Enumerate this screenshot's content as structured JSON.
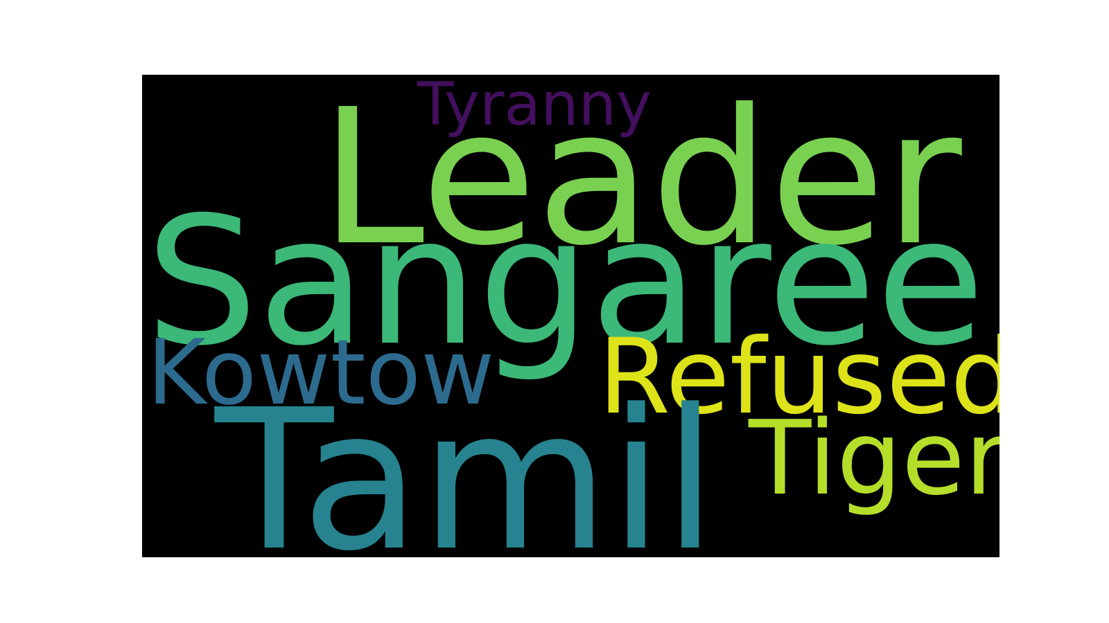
{
  "wordcloud": {
    "background": "#000000",
    "words": [
      {
        "id": "tyranny",
        "text": "Tyranny",
        "color": "#440f5e"
      },
      {
        "id": "leader",
        "text": "Leader",
        "color": "#7ad151"
      },
      {
        "id": "sangaree",
        "text": "Sangaree",
        "color": "#3cb878"
      },
      {
        "id": "kowtow",
        "text": "Kowtow",
        "color": "#2d6b8e"
      },
      {
        "id": "refused",
        "text": "Refused",
        "color": "#dde318"
      },
      {
        "id": "tamil",
        "text": "Tamil",
        "color": "#26838f"
      },
      {
        "id": "tiger",
        "text": "Tiger",
        "color": "#b5de2b"
      }
    ]
  }
}
